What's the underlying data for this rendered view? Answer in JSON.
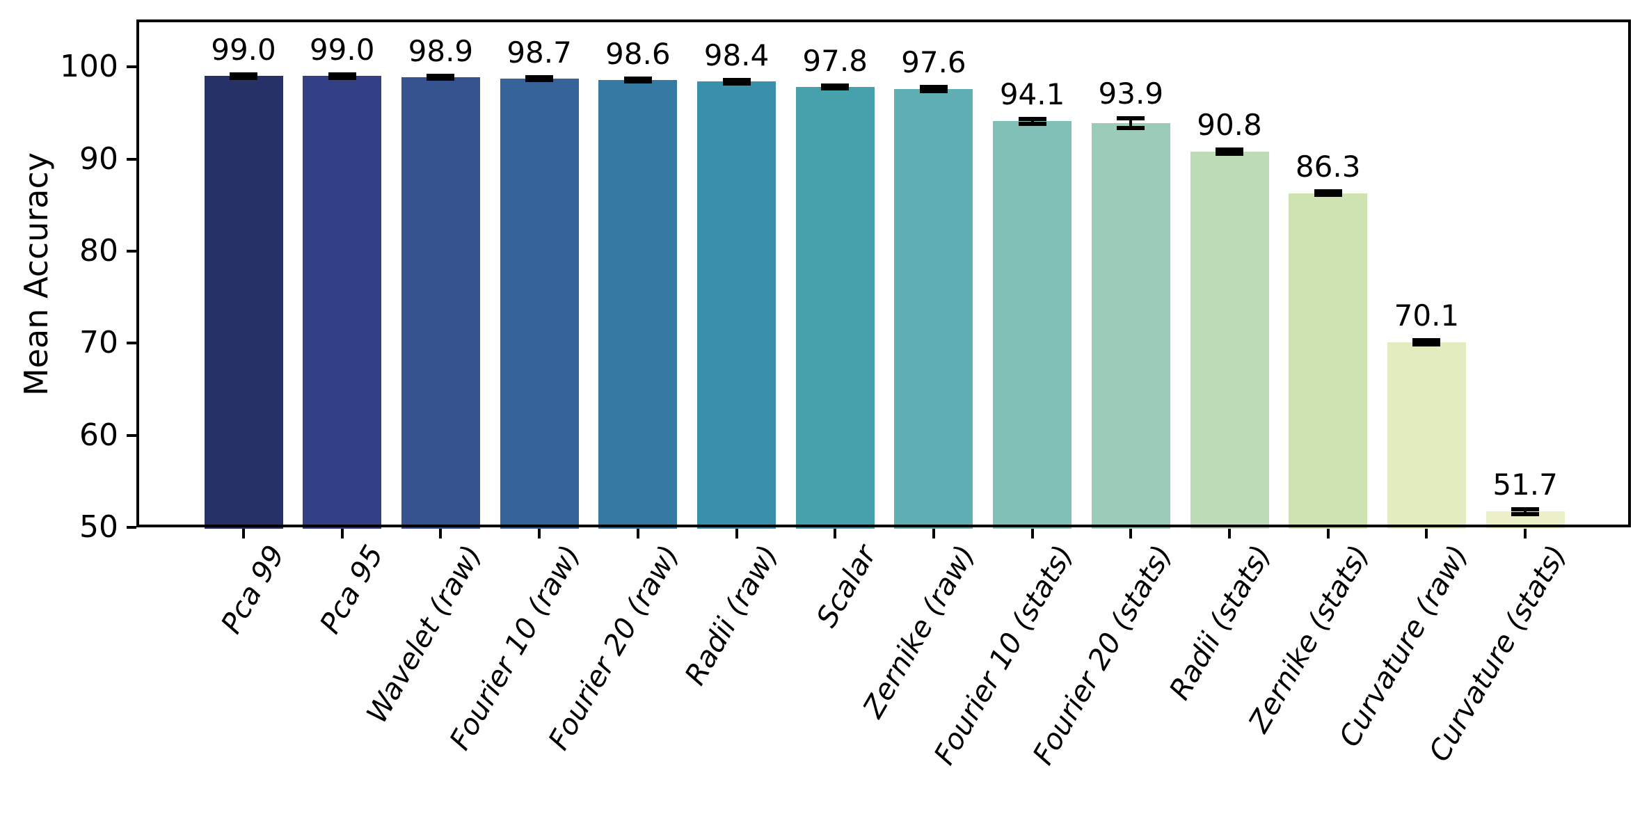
{
  "figure": {
    "background": "#ffffff",
    "axis_color": "#000000",
    "error_bar_color": "#000000"
  },
  "chart_data": {
    "type": "bar",
    "title": "",
    "xlabel": "",
    "ylabel": "Mean Accuracy",
    "ylim": [
      50,
      105
    ],
    "yticks": [
      50,
      60,
      70,
      80,
      90,
      100
    ],
    "grid": false,
    "legend": null,
    "categories": [
      "Pca 99",
      "Pca 95",
      "Wavelet (raw)",
      "Fourier 10 (raw)",
      "Fourier 20 (raw)",
      "Radii (raw)",
      "Scalar",
      "Zernike (raw)",
      "Fourier 10 (stats)",
      "Fourier 20 (stats)",
      "Radii (stats)",
      "Zernike (stats)",
      "Curvature (raw)",
      "Curvature (stats)"
    ],
    "values": [
      99.0,
      99.0,
      98.9,
      98.7,
      98.6,
      98.4,
      97.8,
      97.6,
      94.1,
      93.9,
      90.8,
      86.3,
      70.1,
      51.7
    ],
    "value_labels": [
      "99.0",
      "99.0",
      "98.9",
      "98.7",
      "98.6",
      "98.4",
      "97.8",
      "97.6",
      "94.1",
      "93.9",
      "90.8",
      "86.3",
      "70.1",
      "51.7"
    ],
    "errors": [
      0.2,
      0.2,
      0.15,
      0.15,
      0.15,
      0.2,
      0.15,
      0.2,
      0.25,
      0.5,
      0.25,
      0.2,
      0.2,
      0.3
    ],
    "bar_colors": [
      "#263168",
      "#344086",
      "#36538f",
      "#366398",
      "#347aa3",
      "#3a8fab",
      "#47a1ad",
      "#5fafb4",
      "#80c0b7",
      "#9accb8",
      "#bfdcb8",
      "#cfe2b2",
      "#e2ecbf",
      "#ebf0c8"
    ]
  }
}
